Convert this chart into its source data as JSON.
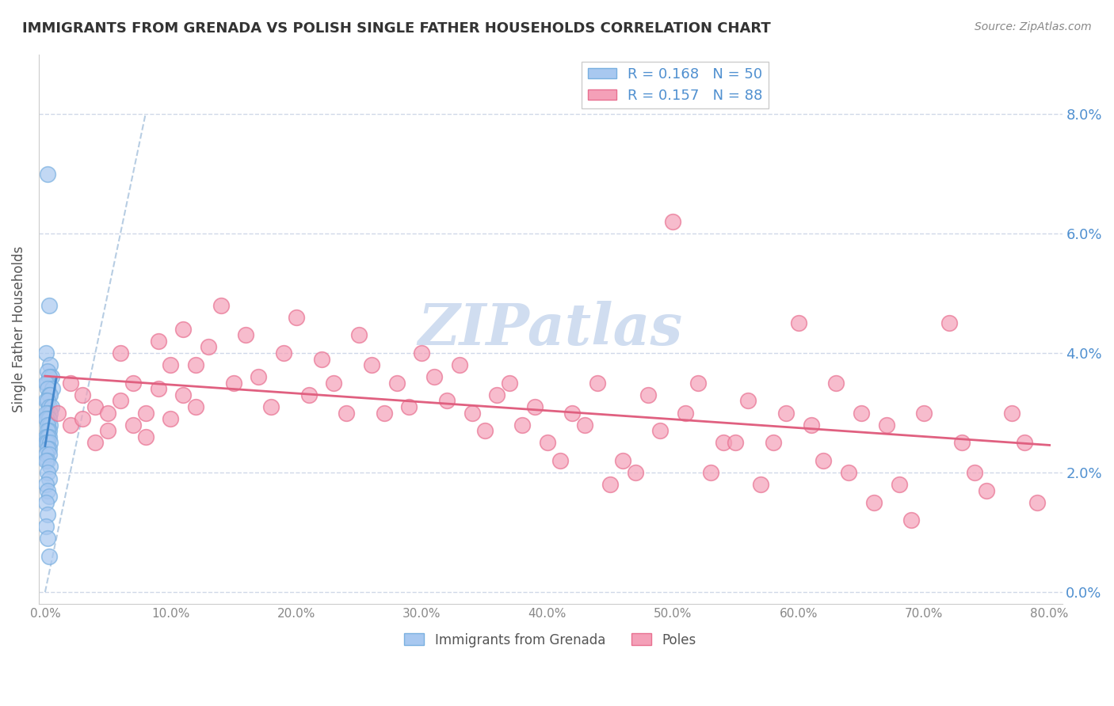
{
  "title": "IMMIGRANTS FROM GRENADA VS POLISH SINGLE FATHER HOUSEHOLDS CORRELATION CHART",
  "source": "Source: ZipAtlas.com",
  "ylabel": "Single Father Households",
  "xlim": [
    0,
    0.8
  ],
  "ylim": [
    0,
    0.088
  ],
  "yticks": [
    0.0,
    0.02,
    0.04,
    0.06,
    0.08
  ],
  "xticks": [
    0.0,
    0.1,
    0.2,
    0.3,
    0.4,
    0.5,
    0.6,
    0.7,
    0.8
  ],
  "grenada_color": "#a8c8f0",
  "poles_color": "#f4a0b8",
  "grenada_edge": "#7ab0e0",
  "poles_edge": "#e87090",
  "trend_blue_color": "#4488cc",
  "trend_pink_color": "#e06080",
  "diagonal_color": "#b0c8e0",
  "watermark_color": "#d0ddf0",
  "tick_label_color": "#5090d0",
  "grenada_x": [
    0.002,
    0.003,
    0.001,
    0.004,
    0.002,
    0.005,
    0.003,
    0.002,
    0.001,
    0.006,
    0.002,
    0.003,
    0.004,
    0.001,
    0.002,
    0.003,
    0.005,
    0.002,
    0.004,
    0.001,
    0.002,
    0.003,
    0.001,
    0.004,
    0.002,
    0.003,
    0.002,
    0.001,
    0.003,
    0.002,
    0.001,
    0.002,
    0.004,
    0.003,
    0.002,
    0.001,
    0.003,
    0.002,
    0.001,
    0.004,
    0.002,
    0.003,
    0.001,
    0.002,
    0.003,
    0.001,
    0.002,
    0.001,
    0.002,
    0.003
  ],
  "grenada_y": [
    0.07,
    0.048,
    0.04,
    0.038,
    0.037,
    0.036,
    0.036,
    0.035,
    0.035,
    0.034,
    0.034,
    0.033,
    0.033,
    0.032,
    0.032,
    0.031,
    0.031,
    0.03,
    0.03,
    0.03,
    0.029,
    0.029,
    0.029,
    0.028,
    0.028,
    0.027,
    0.027,
    0.026,
    0.026,
    0.026,
    0.025,
    0.025,
    0.025,
    0.024,
    0.024,
    0.023,
    0.023,
    0.022,
    0.022,
    0.021,
    0.02,
    0.019,
    0.018,
    0.017,
    0.016,
    0.015,
    0.013,
    0.011,
    0.009,
    0.006
  ],
  "poles_x": [
    0.01,
    0.02,
    0.02,
    0.03,
    0.03,
    0.04,
    0.04,
    0.05,
    0.05,
    0.06,
    0.06,
    0.07,
    0.07,
    0.08,
    0.08,
    0.09,
    0.09,
    0.1,
    0.1,
    0.11,
    0.11,
    0.12,
    0.12,
    0.13,
    0.14,
    0.15,
    0.16,
    0.17,
    0.18,
    0.19,
    0.2,
    0.21,
    0.22,
    0.23,
    0.24,
    0.25,
    0.26,
    0.27,
    0.28,
    0.29,
    0.3,
    0.31,
    0.32,
    0.33,
    0.34,
    0.35,
    0.36,
    0.37,
    0.38,
    0.39,
    0.4,
    0.41,
    0.42,
    0.43,
    0.44,
    0.45,
    0.46,
    0.47,
    0.48,
    0.49,
    0.5,
    0.51,
    0.52,
    0.53,
    0.54,
    0.55,
    0.56,
    0.57,
    0.58,
    0.59,
    0.6,
    0.61,
    0.62,
    0.63,
    0.64,
    0.65,
    0.66,
    0.67,
    0.68,
    0.69,
    0.7,
    0.72,
    0.73,
    0.74,
    0.75,
    0.77,
    0.78,
    0.79
  ],
  "poles_y": [
    0.03,
    0.035,
    0.028,
    0.033,
    0.029,
    0.031,
    0.025,
    0.03,
    0.027,
    0.032,
    0.04,
    0.028,
    0.035,
    0.03,
    0.026,
    0.034,
    0.042,
    0.038,
    0.029,
    0.033,
    0.044,
    0.038,
    0.031,
    0.041,
    0.048,
    0.035,
    0.043,
    0.036,
    0.031,
    0.04,
    0.046,
    0.033,
    0.039,
    0.035,
    0.03,
    0.043,
    0.038,
    0.03,
    0.035,
    0.031,
    0.04,
    0.036,
    0.032,
    0.038,
    0.03,
    0.027,
    0.033,
    0.035,
    0.028,
    0.031,
    0.025,
    0.022,
    0.03,
    0.028,
    0.035,
    0.018,
    0.022,
    0.02,
    0.033,
    0.027,
    0.062,
    0.03,
    0.035,
    0.02,
    0.025,
    0.025,
    0.032,
    0.018,
    0.025,
    0.03,
    0.045,
    0.028,
    0.022,
    0.035,
    0.02,
    0.03,
    0.015,
    0.028,
    0.018,
    0.012,
    0.03,
    0.045,
    0.025,
    0.02,
    0.017,
    0.03,
    0.025,
    0.015
  ]
}
